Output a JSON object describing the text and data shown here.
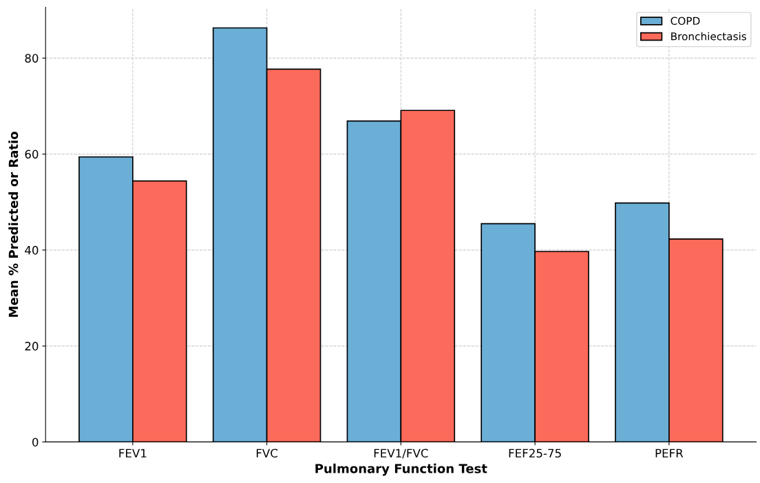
{
  "chart_data": {
    "type": "bar",
    "xlabel": "Pulmonary Function Test",
    "ylabel": "Mean % Predicted or Ratio",
    "categories": [
      "FEV1",
      "FVC",
      "FEV1/FVC",
      "FEF25-75",
      "PEFR"
    ],
    "series": [
      {
        "name": "COPD",
        "color": "#6baed6",
        "values": [
          59.4,
          86.3,
          66.9,
          45.5,
          49.8
        ]
      },
      {
        "name": "Bronchiectasis",
        "color": "#fb6a5a",
        "values": [
          54.4,
          77.7,
          69.1,
          39.7,
          42.3
        ]
      }
    ],
    "ylim": [
      0,
      90.6
    ],
    "yticks": [
      0,
      20,
      40,
      60,
      80
    ],
    "grid": true,
    "legend": "top right"
  }
}
